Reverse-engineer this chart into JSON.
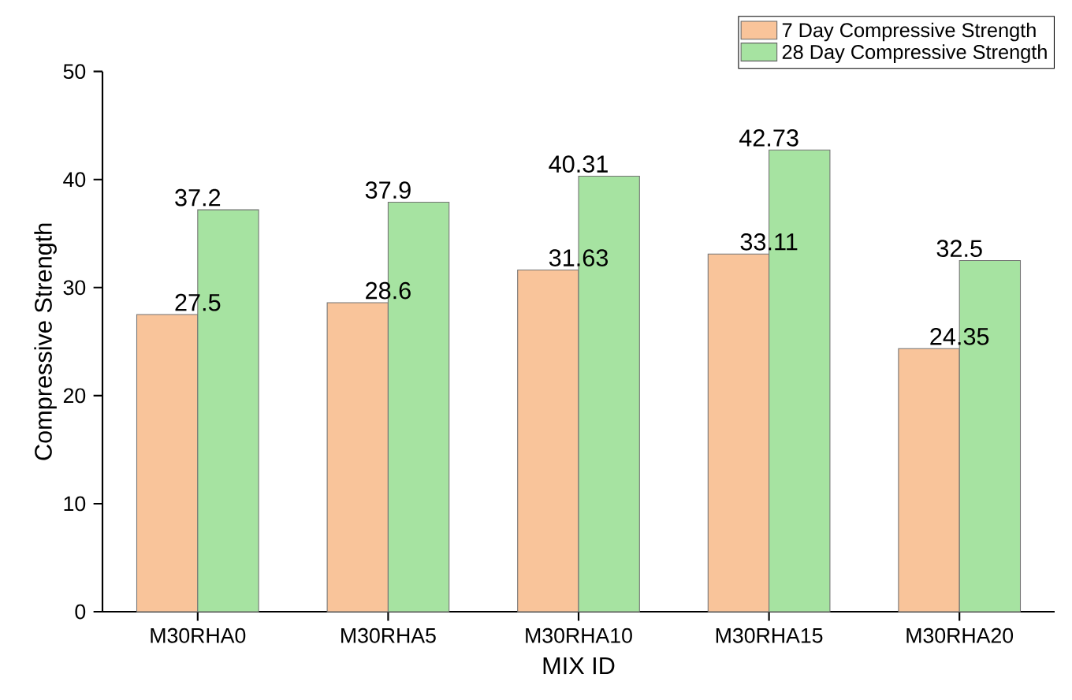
{
  "chart_data": {
    "type": "bar",
    "xlabel": "MIX ID",
    "ylabel": "Compressive Strength",
    "categories": [
      "M30RHA0",
      "M30RHA5",
      "M30RHA10",
      "M30RHA15",
      "M30RHA20"
    ],
    "series": [
      {
        "name": "7 Day Compressive Strength",
        "color": "#f9c49a",
        "values": [
          27.5,
          28.6,
          31.63,
          33.11,
          24.35
        ]
      },
      {
        "name": "28 Day Compressive Strength",
        "color": "#a6e3a1",
        "values": [
          37.2,
          37.9,
          40.31,
          42.73,
          32.5
        ]
      }
    ],
    "ylim": [
      0,
      50
    ],
    "yticks": [
      0,
      10,
      20,
      30,
      40,
      50
    ],
    "data_labels": true,
    "legend": "top right",
    "grid": false
  }
}
